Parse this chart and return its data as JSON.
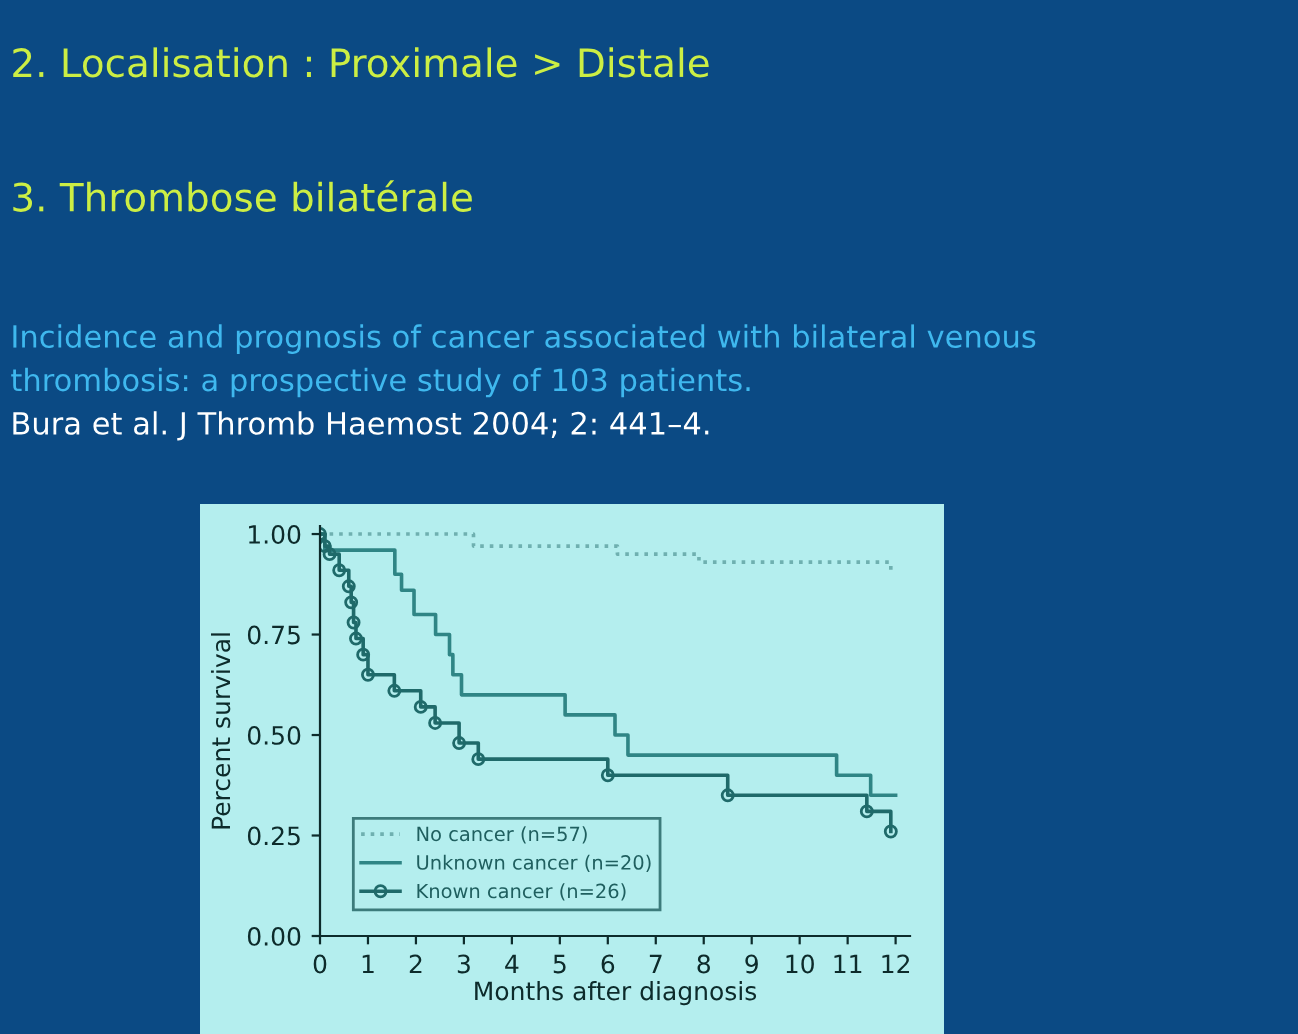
{
  "chart_data": {
    "type": "step",
    "annotations": [
      "2. Localisation : Proximale > Distale",
      "3. Thrombose bilatérale",
      "Incidence and prognosis of cancer associated with bilateral venous",
      "thrombosis: a prospective study of 103 patients.",
      "Bura et al. J Thromb Haemost 2004; 2: 441–4."
    ],
    "xlabel": "Months after diagnosis",
    "ylabel": "Percent survival",
    "series": [
      {
        "name": "No cancer (n=57)",
        "color": "#6fb0b0",
        "line_style": "dotted",
        "marker": "none",
        "x": [
          0,
          3.2,
          6.2,
          7.9,
          11.9
        ],
        "values": [
          1.0,
          0.97,
          0.95,
          0.93,
          0.91
        ]
      },
      {
        "name": "Unknown cancer (n=20)",
        "color": "#2f8585",
        "line_style": "solid",
        "marker": "none",
        "x": [
          0,
          0.1,
          1.56,
          1.7,
          1.96,
          2.41,
          2.7,
          2.77,
          2.95,
          5.11,
          6.15,
          6.42,
          10.77,
          11.48,
          12
        ],
        "values": [
          1.0,
          0.96,
          0.9,
          0.86,
          0.8,
          0.75,
          0.7,
          0.65,
          0.6,
          0.55,
          0.5,
          0.45,
          0.4,
          0.35,
          0.35
        ]
      },
      {
        "name": "Known cancer (n=26)",
        "color": "#1f6a6a",
        "line_style": "solid",
        "marker": "circle",
        "x": [
          0,
          0.1,
          0.2,
          0.4,
          0.6,
          0.65,
          0.7,
          0.75,
          0.9,
          1.0,
          1.55,
          2.1,
          2.4,
          2.9,
          3.3,
          6.0,
          8.5,
          11.4,
          11.9
        ],
        "values": [
          1.0,
          0.97,
          0.95,
          0.91,
          0.87,
          0.83,
          0.78,
          0.74,
          0.7,
          0.65,
          0.61,
          0.57,
          0.53,
          0.48,
          0.44,
          0.4,
          0.35,
          0.31,
          0.26
        ]
      }
    ],
    "xlim": [
      0,
      12.3
    ],
    "ylim": [
      0,
      1.02
    ],
    "xticks": [
      0,
      1,
      2,
      3,
      4,
      5,
      6,
      7,
      8,
      9,
      10,
      11,
      12
    ],
    "yticks": [
      {
        "value": 0,
        "label": "0.00"
      },
      {
        "value": 0.25,
        "label": "0.25"
      },
      {
        "value": 0.5,
        "label": "0.50"
      },
      {
        "value": 0.75,
        "label": "0.75"
      },
      {
        "value": 1,
        "label": "1.00"
      }
    ],
    "legend": "bottom left",
    "grid": false
  }
}
